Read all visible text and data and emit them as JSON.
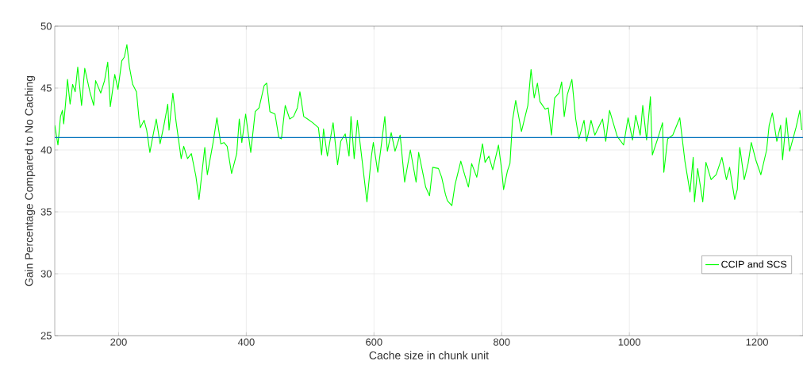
{
  "chart_data": {
    "type": "line",
    "xlabel": "Cache size in chunk unit",
    "ylabel": "Gain Percentage Compared to No Caching",
    "xlim": [
      100,
      1272
    ],
    "xticks": [
      200,
      400,
      600,
      800,
      1000,
      1200
    ],
    "ylim": [
      25,
      50
    ],
    "yticks": [
      25,
      30,
      35,
      40,
      45,
      50
    ],
    "grid": true,
    "legend": "bottom right",
    "ref_lines": [
      {
        "axis": "y",
        "value": 41,
        "color": "#0072bd"
      }
    ],
    "series": [
      {
        "name": "CCIP and SCS",
        "color": "#00ff00",
        "x": [
          100,
          105,
          109,
          112,
          114,
          117,
          120,
          124,
          128,
          132,
          136,
          142,
          147,
          155,
          161,
          164,
          172,
          178,
          183,
          187,
          194,
          199,
          205,
          209,
          213,
          217,
          222,
          228,
          232,
          234,
          240,
          244,
          249,
          254,
          259,
          265,
          271,
          277,
          279,
          285,
          290,
          298,
          302,
          308,
          314,
          321,
          326,
          330,
          335,
          339,
          348,
          354,
          360,
          365,
          370,
          377,
          385,
          389,
          393,
          399,
          407,
          414,
          420,
          428,
          432,
          437,
          445,
          451,
          455,
          461,
          468,
          474,
          480,
          484,
          490,
          496,
          504,
          513,
          518,
          521,
          527,
          536,
          543,
          548,
          555,
          561,
          564,
          569,
          574,
          582,
          589,
          596,
          599,
          606,
          612,
          617,
          621,
          627,
          633,
          641,
          648,
          657,
          666,
          670,
          681,
          687,
          692,
          701,
          706,
          712,
          715,
          722,
          727,
          736,
          742,
          748,
          753,
          761,
          770,
          774,
          780,
          786,
          795,
          800,
          803,
          809,
          813,
          817,
          822,
          831,
          841,
          846,
          851,
          856,
          860,
          868,
          873,
          878,
          883,
          890,
          894,
          898,
          903,
          910,
          916,
          921,
          929,
          933,
          940,
          946,
          958,
          963,
          969,
          981,
          991,
          998,
          1005,
          1010,
          1017,
          1021,
          1027,
          1033,
          1036,
          1045,
          1052,
          1054,
          1060,
          1068,
          1079,
          1087,
          1095,
          1100,
          1102,
          1107,
          1115,
          1120,
          1128,
          1136,
          1145,
          1152,
          1157,
          1165,
          1169,
          1173,
          1180,
          1186,
          1191,
          1198,
          1206,
          1215,
          1219,
          1224,
          1231,
          1237,
          1240,
          1246,
          1251,
          1261,
          1267,
          1270
        ],
        "values": [
          42.0,
          40.4,
          42.7,
          43.2,
          42.1,
          43.8,
          45.7,
          43.7,
          45.3,
          44.7,
          46.7,
          43.6,
          46.6,
          44.7,
          43.6,
          45.6,
          44.6,
          45.6,
          47.1,
          43.5,
          46.1,
          44.9,
          47.2,
          47.5,
          48.5,
          46.7,
          45.3,
          44.7,
          42.5,
          41.8,
          42.4,
          41.6,
          39.8,
          41.2,
          42.5,
          40.5,
          42.0,
          43.7,
          41.6,
          44.6,
          42.3,
          39.3,
          40.3,
          39.3,
          39.7,
          37.9,
          36.0,
          37.9,
          40.2,
          38.0,
          40.6,
          42.6,
          40.5,
          40.6,
          40.3,
          38.1,
          39.7,
          42.5,
          40.6,
          42.9,
          39.8,
          43.1,
          43.4,
          45.2,
          45.4,
          43.1,
          42.9,
          41.0,
          40.9,
          43.6,
          42.5,
          42.7,
          43.4,
          44.7,
          42.7,
          42.5,
          42.2,
          41.8,
          39.6,
          41.7,
          39.5,
          42.2,
          38.8,
          40.7,
          41.3,
          39.5,
          42.7,
          39.3,
          42.4,
          38.9,
          35.8,
          39.5,
          40.6,
          38.2,
          40.6,
          42.7,
          39.9,
          41.4,
          39.9,
          41.2,
          37.4,
          40.0,
          37.4,
          39.8,
          37.0,
          36.3,
          38.6,
          38.5,
          37.8,
          36.4,
          35.9,
          35.5,
          37.2,
          39.1,
          38.0,
          37.0,
          38.9,
          37.8,
          40.5,
          39.0,
          39.5,
          38.4,
          40.4,
          38.4,
          36.8,
          38.3,
          38.9,
          42.4,
          44.0,
          41.5,
          43.6,
          46.5,
          44.2,
          45.4,
          43.9,
          43.3,
          43.4,
          41.2,
          44.2,
          44.6,
          45.5,
          42.7,
          44.5,
          45.7,
          42.5,
          40.9,
          42.4,
          40.7,
          42.4,
          41.2,
          42.5,
          40.7,
          43.2,
          41.1,
          40.4,
          42.6,
          40.8,
          42.8,
          41.2,
          43.6,
          40.8,
          44.3,
          39.6,
          41.0,
          42.2,
          38.2,
          40.9,
          41.2,
          42.6,
          39.1,
          36.6,
          39.4,
          35.8,
          38.5,
          35.8,
          39.0,
          37.6,
          38.0,
          39.4,
          37.6,
          38.6,
          36.0,
          36.8,
          40.2,
          37.6,
          38.9,
          40.6,
          39.2,
          38.0,
          40.0,
          42.0,
          43.0,
          40.7,
          42.0,
          39.2,
          42.6,
          39.9,
          41.8,
          43.2,
          41.6
        ]
      }
    ]
  }
}
